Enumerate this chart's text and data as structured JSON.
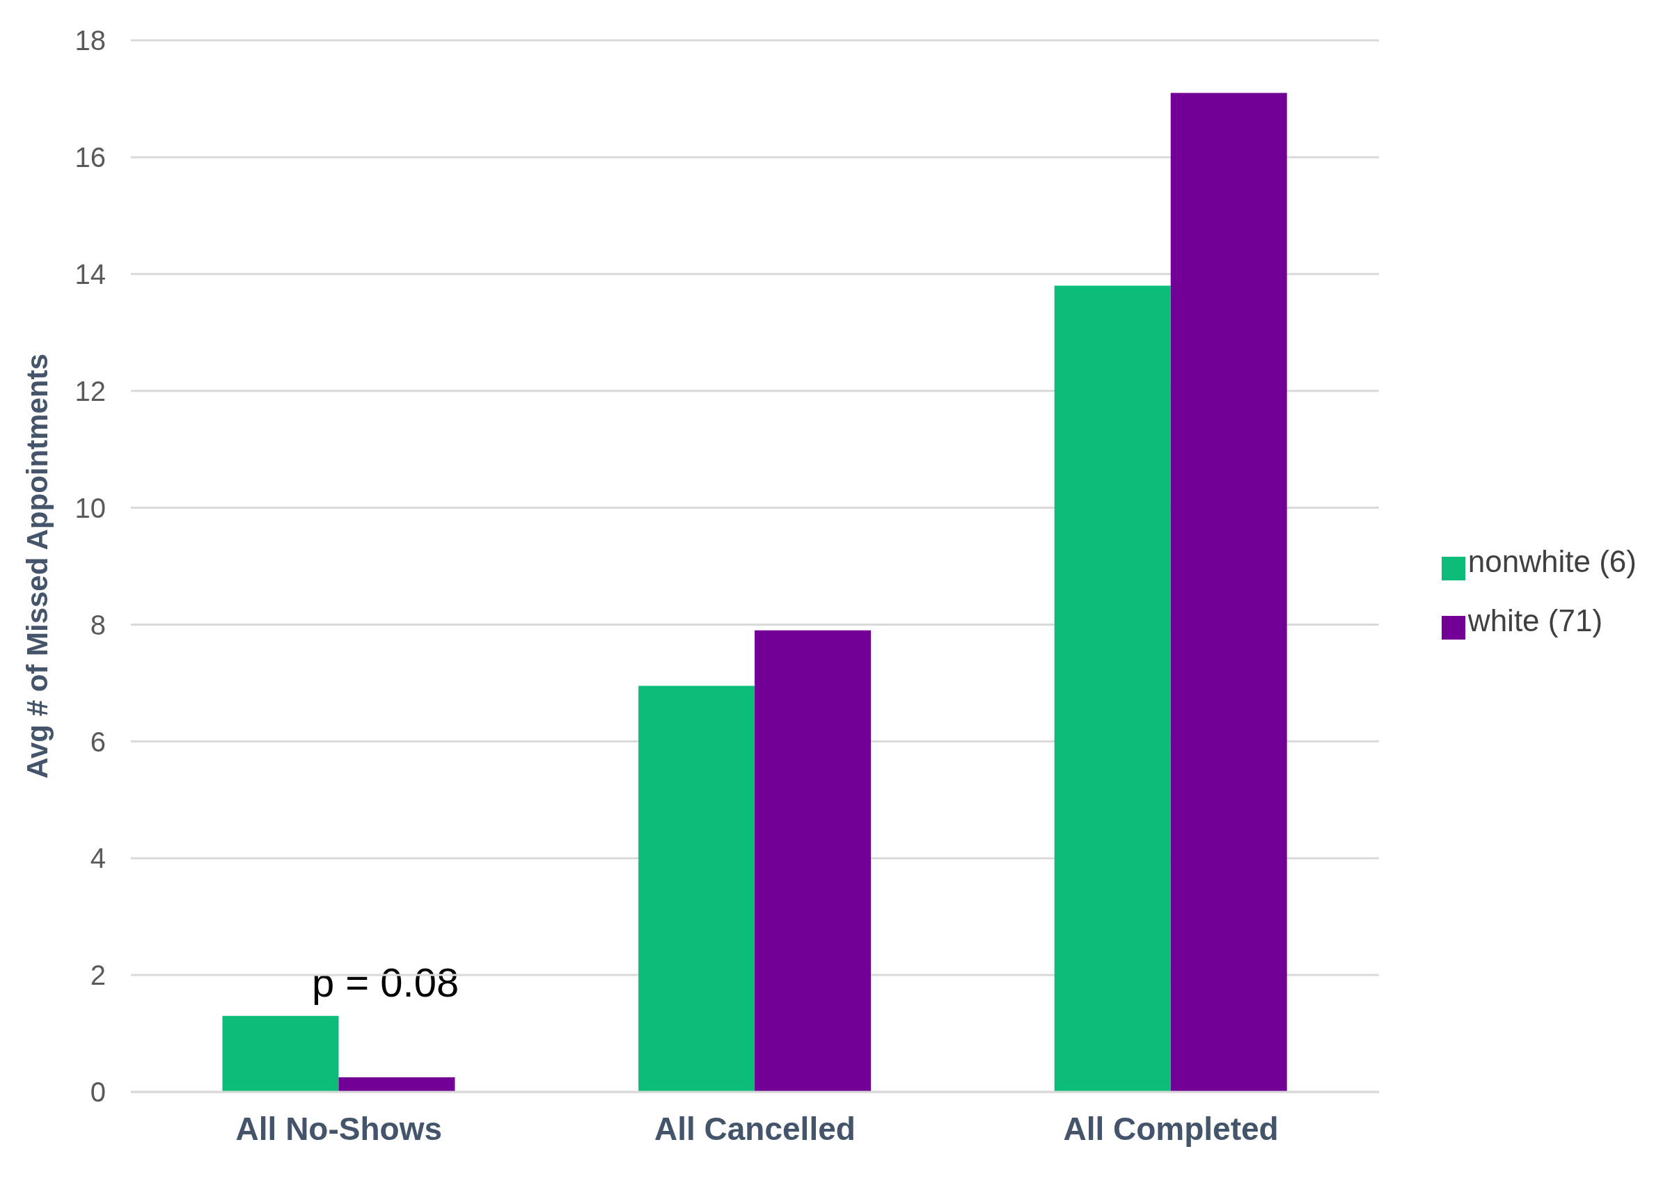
{
  "chart_data": {
    "type": "bar",
    "ylabel": "Avg # of Missed Appointments",
    "categories": [
      "All No-Shows",
      "All Cancelled",
      "All Completed"
    ],
    "series": [
      {
        "name": "nonwhite (6)",
        "color": "#0bbd78",
        "values": [
          1.3,
          6.95,
          13.8
        ]
      },
      {
        "name": "white (71)",
        "color": "#720096",
        "values": [
          0.25,
          7.9,
          17.1
        ]
      }
    ],
    "ylim": [
      0,
      18
    ],
    "yticks": [
      0,
      2,
      4,
      6,
      8,
      10,
      12,
      14,
      16,
      18
    ],
    "grid": "y",
    "legend": "right",
    "annotations": [
      "p = 0.08"
    ]
  }
}
